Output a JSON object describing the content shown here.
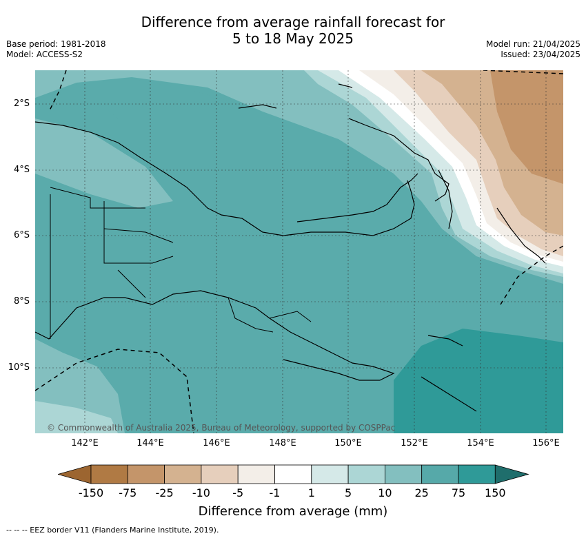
{
  "title_line1": "Difference from average rainfall forecast for",
  "title_line2": "5 to 18 May 2025",
  "meta_left": {
    "base_period": "Base period: 1981-2018",
    "model": "Model: ACCESS-S2"
  },
  "meta_right": {
    "model_run": "Model run: 21/04/2025",
    "issued": "Issued: 23/04/2025"
  },
  "map": {
    "lat_labels": [
      "2°S",
      "4°S",
      "6°S",
      "8°S",
      "10°S"
    ],
    "lon_labels": [
      "142°E",
      "144°E",
      "146°E",
      "148°E",
      "150°E",
      "152°E",
      "154°E",
      "156°E"
    ],
    "copyright": "© Commonwealth of Australia 2025, Bureau of Meteorology, supported by COSPPac",
    "eez_border": "dashed"
  },
  "legend": {
    "title": "Difference from average (mm)",
    "ticks": [
      "-150",
      "-75",
      "-25",
      "-10",
      "-5",
      "-1",
      "1",
      "5",
      "10",
      "25",
      "75",
      "150"
    ],
    "colors": [
      "#9c6530",
      "#b07a44",
      "#c4956a",
      "#d4b290",
      "#e6cfbc",
      "#f3eee8",
      "#ffffff",
      "#d5e9e8",
      "#acd6d5",
      "#83bfbf",
      "#56a9a9",
      "#2f9a98",
      "#1f6e6c"
    ]
  },
  "footnote": "--  --  -- EEZ border V11 (Flanders Marine Institute, 2019)."
}
